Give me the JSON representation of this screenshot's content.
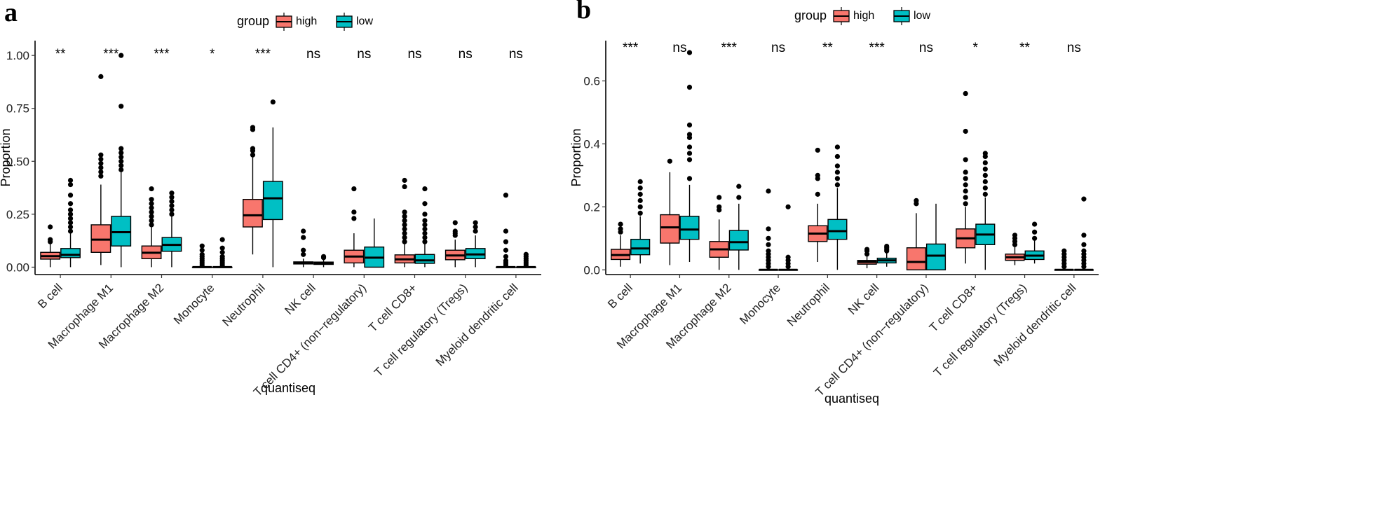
{
  "chart_data": [
    {
      "panel": "a",
      "type": "boxplot",
      "xlabel": "quantiseq",
      "ylabel": "Proportion",
      "ylim": [
        -0.035,
        1.07
      ],
      "yticks": [
        0.0,
        0.25,
        0.5,
        0.75,
        1.0
      ],
      "ytick_labels": [
        "0.00",
        "0.25",
        "0.50",
        "0.75",
        "1.00"
      ],
      "legend": {
        "title": "group",
        "entries": [
          "high",
          "low"
        ],
        "colors": [
          "#F8766D",
          "#00BFC4"
        ],
        "position": "top"
      },
      "categories": [
        "B cell",
        "Macrophage M1",
        "Macrophage M2",
        "Monocyte",
        "Neutrophil",
        "NK cell",
        "T cell CD4+ (non−regulatory)",
        "T cell CD8+",
        "T cell regulatory (Tregs)",
        "Myeloid dendritic cell"
      ],
      "significance": [
        "**",
        "***",
        "***",
        "*",
        "***",
        "ns",
        "ns",
        "ns",
        "ns",
        "ns"
      ],
      "series": [
        {
          "name": "high",
          "boxes": [
            {
              "lw": 0.0,
              "q1": 0.038,
              "med": 0.052,
              "q3": 0.07,
              "uw": 0.11,
              "out": [
                0.12,
                0.13,
                0.19
              ]
            },
            {
              "lw": 0.01,
              "q1": 0.07,
              "med": 0.13,
              "q3": 0.2,
              "uw": 0.39,
              "out": [
                0.43,
                0.45,
                0.47,
                0.49,
                0.51,
                0.53,
                0.9
              ]
            },
            {
              "lw": 0.0,
              "q1": 0.04,
              "med": 0.068,
              "q3": 0.1,
              "uw": 0.19,
              "out": [
                0.2,
                0.22,
                0.24,
                0.26,
                0.28,
                0.3,
                0.32,
                0.37
              ]
            },
            {
              "lw": 0.0,
              "q1": 0.0,
              "med": 0.0,
              "q3": 0.0,
              "uw": 0.0,
              "out": [
                0.01,
                0.02,
                0.03,
                0.04,
                0.05,
                0.06,
                0.08,
                0.1
              ]
            },
            {
              "lw": 0.06,
              "q1": 0.19,
              "med": 0.245,
              "q3": 0.32,
              "uw": 0.52,
              "out": [
                0.53,
                0.55,
                0.56,
                0.65,
                0.66
              ]
            },
            {
              "lw": 0.0,
              "q1": 0.015,
              "med": 0.02,
              "q3": 0.025,
              "uw": 0.04,
              "out": [
                0.06,
                0.08,
                0.14,
                0.17
              ]
            },
            {
              "lw": 0.0,
              "q1": 0.02,
              "med": 0.05,
              "q3": 0.08,
              "uw": 0.16,
              "out": [
                0.23,
                0.26,
                0.37
              ]
            },
            {
              "lw": 0.0,
              "q1": 0.02,
              "med": 0.037,
              "q3": 0.058,
              "uw": 0.11,
              "out": [
                0.12,
                0.14,
                0.16,
                0.18,
                0.2,
                0.22,
                0.24,
                0.26,
                0.38,
                0.41
              ]
            },
            {
              "lw": 0.0,
              "q1": 0.035,
              "med": 0.055,
              "q3": 0.08,
              "uw": 0.13,
              "out": [
                0.15,
                0.16,
                0.17,
                0.21
              ]
            },
            {
              "lw": 0.0,
              "q1": 0.0,
              "med": 0.0,
              "q3": 0.0,
              "uw": 0.0,
              "out": [
                0.01,
                0.02,
                0.03,
                0.05,
                0.08,
                0.12,
                0.17,
                0.34
              ]
            }
          ]
        },
        {
          "name": "low",
          "boxes": [
            {
              "lw": 0.0,
              "q1": 0.045,
              "med": 0.058,
              "q3": 0.088,
              "uw": 0.16,
              "out": [
                0.17,
                0.19,
                0.21,
                0.23,
                0.25,
                0.27,
                0.3,
                0.34,
                0.39,
                0.41
              ]
            },
            {
              "lw": 0.0,
              "q1": 0.1,
              "med": 0.165,
              "q3": 0.24,
              "uw": 0.45,
              "out": [
                0.46,
                0.48,
                0.5,
                0.52,
                0.54,
                0.56,
                0.76,
                1.0
              ]
            },
            {
              "lw": 0.0,
              "q1": 0.075,
              "med": 0.105,
              "q3": 0.14,
              "uw": 0.24,
              "out": [
                0.25,
                0.27,
                0.29,
                0.31,
                0.33,
                0.35
              ]
            },
            {
              "lw": 0.0,
              "q1": 0.0,
              "med": 0.0,
              "q3": 0.0,
              "uw": 0.0,
              "out": [
                0.01,
                0.02,
                0.03,
                0.04,
                0.05,
                0.07,
                0.09,
                0.13
              ]
            },
            {
              "lw": 0.0,
              "q1": 0.225,
              "med": 0.325,
              "q3": 0.405,
              "uw": 0.66,
              "out": [
                0.78
              ]
            },
            {
              "lw": 0.0,
              "q1": 0.013,
              "med": 0.018,
              "q3": 0.024,
              "uw": 0.035,
              "out": [
                0.045,
                0.05
              ]
            },
            {
              "lw": 0.0,
              "q1": 0.0,
              "med": 0.045,
              "q3": 0.095,
              "uw": 0.23,
              "out": []
            },
            {
              "lw": 0.0,
              "q1": 0.018,
              "med": 0.032,
              "q3": 0.06,
              "uw": 0.11,
              "out": [
                0.12,
                0.14,
                0.16,
                0.18,
                0.2,
                0.22,
                0.25,
                0.3,
                0.37
              ]
            },
            {
              "lw": 0.0,
              "q1": 0.04,
              "med": 0.06,
              "q3": 0.088,
              "uw": 0.15,
              "out": [
                0.17,
                0.19,
                0.21
              ]
            },
            {
              "lw": 0.0,
              "q1": 0.0,
              "med": 0.0,
              "q3": 0.0,
              "uw": 0.0,
              "out": [
                0.01,
                0.02,
                0.03,
                0.04,
                0.05,
                0.06
              ]
            }
          ]
        }
      ]
    },
    {
      "panel": "b",
      "type": "boxplot",
      "xlabel": "quantiseq",
      "ylabel": "Proportion",
      "ylim": [
        -0.015,
        0.728
      ],
      "yticks": [
        0.0,
        0.2,
        0.4,
        0.6
      ],
      "ytick_labels": [
        "0.0",
        "0.2",
        "0.4",
        "0.6"
      ],
      "legend": {
        "title": "group",
        "entries": [
          "high",
          "low"
        ],
        "colors": [
          "#F8766D",
          "#00BFC4"
        ],
        "position": "top"
      },
      "categories": [
        "B cell",
        "Macrophage M1",
        "Macrophage M2",
        "Monocyte",
        "Neutrophil",
        "NK cell",
        "T cell CD4+ (non−regulatory)",
        "T cell CD8+",
        "T cell regulatory (Tregs)",
        "Myeloid dendritic cell"
      ],
      "significance": [
        "***",
        "ns",
        "***",
        "ns",
        "**",
        "***",
        "ns",
        "*",
        "**",
        "ns"
      ],
      "series": [
        {
          "name": "high",
          "boxes": [
            {
              "lw": 0.01,
              "q1": 0.033,
              "med": 0.047,
              "q3": 0.065,
              "uw": 0.11,
              "out": [
                0.12,
                0.13,
                0.145
              ]
            },
            {
              "lw": 0.015,
              "q1": 0.085,
              "med": 0.135,
              "q3": 0.175,
              "uw": 0.31,
              "out": [
                0.345
              ]
            },
            {
              "lw": 0.0,
              "q1": 0.04,
              "med": 0.065,
              "q3": 0.09,
              "uw": 0.16,
              "out": [
                0.19,
                0.2,
                0.23
              ]
            },
            {
              "lw": 0.0,
              "q1": 0.0,
              "med": 0.0,
              "q3": 0.0,
              "uw": 0.0,
              "out": [
                0.01,
                0.02,
                0.03,
                0.04,
                0.05,
                0.06,
                0.08,
                0.1,
                0.13,
                0.25
              ]
            },
            {
              "lw": 0.025,
              "q1": 0.09,
              "med": 0.115,
              "q3": 0.14,
              "uw": 0.21,
              "out": [
                0.24,
                0.29,
                0.3,
                0.38
              ]
            },
            {
              "lw": 0.005,
              "q1": 0.018,
              "med": 0.025,
              "q3": 0.03,
              "uw": 0.045,
              "out": [
                0.05,
                0.06,
                0.065
              ]
            },
            {
              "lw": 0.0,
              "q1": 0.0,
              "med": 0.025,
              "q3": 0.07,
              "uw": 0.18,
              "out": [
                0.21,
                0.22
              ]
            },
            {
              "lw": 0.02,
              "q1": 0.07,
              "med": 0.1,
              "q3": 0.13,
              "uw": 0.2,
              "out": [
                0.21,
                0.23,
                0.25,
                0.27,
                0.29,
                0.31,
                0.35,
                0.44,
                0.56
              ]
            },
            {
              "lw": 0.015,
              "q1": 0.03,
              "med": 0.04,
              "q3": 0.05,
              "uw": 0.075,
              "out": [
                0.08,
                0.09,
                0.1,
                0.11
              ]
            },
            {
              "lw": 0.0,
              "q1": 0.0,
              "med": 0.0,
              "q3": 0.0,
              "uw": 0.0,
              "out": [
                0.01,
                0.02,
                0.03,
                0.04,
                0.05,
                0.06
              ]
            }
          ]
        },
        {
          "name": "low",
          "boxes": [
            {
              "lw": 0.02,
              "q1": 0.048,
              "med": 0.068,
              "q3": 0.097,
              "uw": 0.17,
              "out": [
                0.18,
                0.2,
                0.22,
                0.24,
                0.26,
                0.28
              ]
            },
            {
              "lw": 0.025,
              "q1": 0.097,
              "med": 0.128,
              "q3": 0.17,
              "uw": 0.27,
              "out": [
                0.29,
                0.35,
                0.37,
                0.39,
                0.42,
                0.43,
                0.46,
                0.58,
                0.69
              ]
            },
            {
              "lw": 0.0,
              "q1": 0.063,
              "med": 0.088,
              "q3": 0.125,
              "uw": 0.21,
              "out": [
                0.23,
                0.265
              ]
            },
            {
              "lw": 0.0,
              "q1": 0.0,
              "med": 0.0,
              "q3": 0.0,
              "uw": 0.0,
              "out": [
                0.01,
                0.02,
                0.03,
                0.04,
                0.2
              ]
            },
            {
              "lw": 0.0,
              "q1": 0.097,
              "med": 0.123,
              "q3": 0.16,
              "uw": 0.26,
              "out": [
                0.27,
                0.29,
                0.31,
                0.33,
                0.36,
                0.39
              ]
            },
            {
              "lw": 0.01,
              "q1": 0.022,
              "med": 0.03,
              "q3": 0.037,
              "uw": 0.055,
              "out": [
                0.06,
                0.065,
                0.07,
                0.075
              ]
            },
            {
              "lw": 0.0,
              "q1": 0.0,
              "med": 0.045,
              "q3": 0.082,
              "uw": 0.21,
              "out": []
            },
            {
              "lw": 0.0,
              "q1": 0.08,
              "med": 0.112,
              "q3": 0.145,
              "uw": 0.23,
              "out": [
                0.24,
                0.26,
                0.28,
                0.3,
                0.32,
                0.34,
                0.36,
                0.37
              ]
            },
            {
              "lw": 0.02,
              "q1": 0.033,
              "med": 0.045,
              "q3": 0.06,
              "uw": 0.095,
              "out": [
                0.1,
                0.12,
                0.145
              ]
            },
            {
              "lw": 0.0,
              "q1": 0.0,
              "med": 0.0,
              "q3": 0.0,
              "uw": 0.0,
              "out": [
                0.01,
                0.02,
                0.03,
                0.04,
                0.05,
                0.06,
                0.08,
                0.11,
                0.225
              ]
            }
          ]
        }
      ]
    }
  ]
}
